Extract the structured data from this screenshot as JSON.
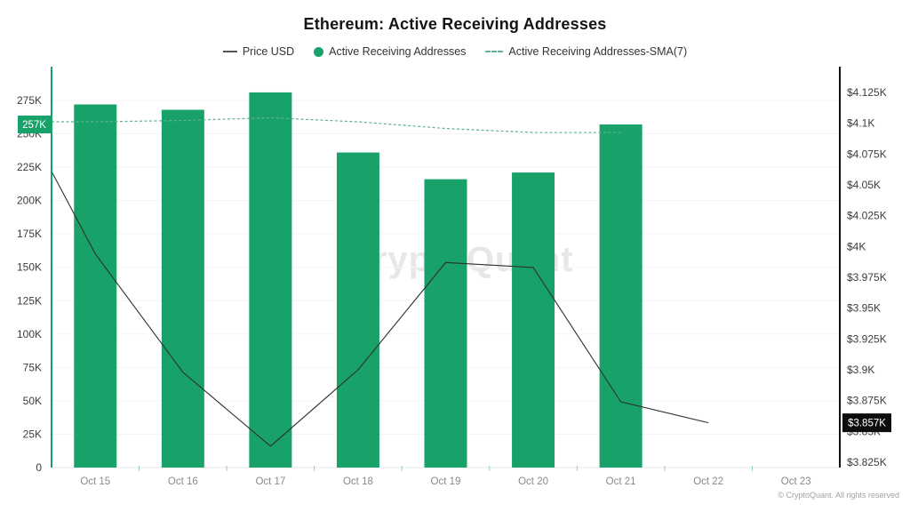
{
  "header": {
    "title": "Ethereum: Active Receiving Addresses"
  },
  "legend": [
    {
      "label": "Price USD",
      "swatch": "line",
      "color": "#555555"
    },
    {
      "label": "Active Receiving Addresses",
      "swatch": "circle",
      "color": "#18a269"
    },
    {
      "label": "Active Receiving Addresses-SMA(7)",
      "swatch": "dash",
      "color": "#62b094"
    }
  ],
  "watermark": {
    "text": "CryptoQuant"
  },
  "footer": {
    "copyright": "© CryptoQuant. All rights reserved"
  },
  "chart_data": {
    "type": "bar",
    "title": "Ethereum: Active Receiving Addresses",
    "categories": [
      "Oct 15",
      "Oct 16",
      "Oct 17",
      "Oct 18",
      "Oct 19",
      "Oct 20",
      "Oct 21",
      "Oct 22",
      "Oct 23"
    ],
    "series": [
      {
        "name": "Active Receiving Addresses",
        "type": "bar",
        "axis": "left",
        "color": "#18a269",
        "values": [
          272000,
          268000,
          281000,
          236000,
          216000,
          221000,
          257000,
          null,
          null
        ]
      },
      {
        "name": "Price USD",
        "type": "line",
        "axis": "right",
        "color": "#2f2f2f",
        "values": [
          3994,
          3898,
          3838,
          3900,
          3987,
          3983,
          3874,
          3857,
          null
        ],
        "edge_start": 4061
      },
      {
        "name": "Active Receiving Addresses-SMA(7)",
        "type": "dashed-line",
        "axis": "left",
        "color": "#62b094",
        "values": [
          259000,
          260000,
          262000,
          259000,
          254000,
          251000,
          251000,
          null,
          null
        ],
        "edge_start": 259000
      }
    ],
    "left_axis": {
      "min": 0,
      "tick_step": 25000,
      "axis_color": "#18a269",
      "label_color": "#3c3c3c",
      "tick_labels": [
        "0",
        "25K",
        "50K",
        "75K",
        "100K",
        "125K",
        "150K",
        "175K",
        "200K",
        "225K",
        "250K",
        "275K"
      ]
    },
    "right_axis": {
      "min": 3825,
      "tick_step": 25,
      "axis_color": "#111111",
      "label_color": "#3c3c3c",
      "tick_labels": [
        "$3.825K",
        "$3.85K",
        "$3.875K",
        "$3.9K",
        "$3.925K",
        "$3.95K",
        "$3.975K",
        "$4K",
        "$4.025K",
        "$4.05K",
        "$4.075K",
        "$4.1K",
        "$4.125K"
      ]
    },
    "x_axis": {
      "label_color": "#8a8a8a"
    },
    "grid": {
      "horizontal": true,
      "color": "#f5f5f5"
    },
    "badges": {
      "left": {
        "text": "257K",
        "value": 257000,
        "bg": "#18a269",
        "fg": "#ffffff"
      },
      "right": {
        "text": "$3.857K",
        "value": 3857,
        "bg": "#0d0d0d",
        "fg": "#ffffff"
      }
    }
  }
}
